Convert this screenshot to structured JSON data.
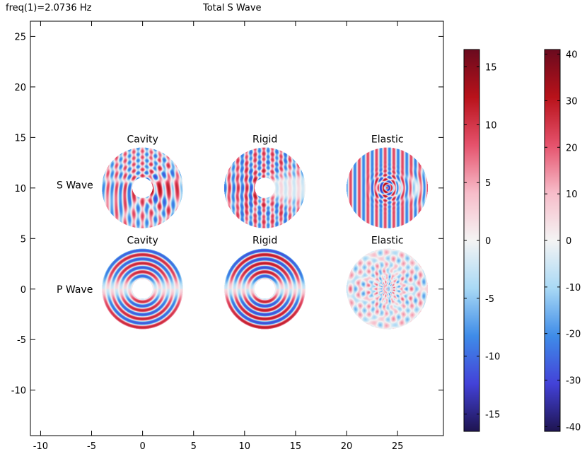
{
  "header": {
    "freq_label": "freq(1)=2.0736 Hz",
    "title": "Total S Wave"
  },
  "chart_data": {
    "type": "heatmap",
    "title": "Total S Wave",
    "xlim": [
      -11,
      29.5
    ],
    "ylim": [
      -14.5,
      26.5
    ],
    "x_ticks": [
      -10,
      -5,
      0,
      5,
      10,
      15,
      20,
      25
    ],
    "y_ticks": [
      -10,
      -5,
      0,
      5,
      10,
      15,
      20,
      25
    ],
    "row_labels": [
      {
        "text": "S Wave",
        "y": 10.3
      },
      {
        "text": "P Wave",
        "y": 0
      }
    ],
    "domains": [
      {
        "label": "Cavity",
        "type": "cavity",
        "wave": "s",
        "cx": 0,
        "cy": 10,
        "r_outer": 4,
        "r_inner": 1
      },
      {
        "label": "Rigid",
        "type": "rigid",
        "wave": "s",
        "cx": 12,
        "cy": 10,
        "r_outer": 4,
        "r_inner": 1
      },
      {
        "label": "Elastic",
        "type": "elastic",
        "wave": "s",
        "cx": 24,
        "cy": 10,
        "r_outer": 4,
        "r_inner": 0
      },
      {
        "label": "Cavity",
        "type": "cavity",
        "wave": "p",
        "cx": 0,
        "cy": 0,
        "r_outer": 4,
        "r_inner": 1
      },
      {
        "label": "Rigid",
        "type": "rigid",
        "wave": "p",
        "cx": 12,
        "cy": 0,
        "r_outer": 4,
        "r_inner": 1
      },
      {
        "label": "Elastic",
        "type": "elastic",
        "wave": "p",
        "cx": 24,
        "cy": 0,
        "r_outer": 4,
        "r_inner": 0
      }
    ],
    "colorbars": [
      {
        "name": "colorbar-s",
        "min": -16.5,
        "max": 16.5,
        "ticks": [
          15,
          10,
          5,
          0,
          -5,
          -10,
          -15
        ]
      },
      {
        "name": "colorbar-p",
        "min": -41,
        "max": 41,
        "ticks": [
          40,
          30,
          20,
          10,
          0,
          -10,
          -20,
          -30,
          -40
        ]
      }
    ],
    "colormap": [
      "#1e1450",
      "#4342d8",
      "#3f8ce8",
      "#a9d9f5",
      "#f4f4f4",
      "#f7bcc9",
      "#e5526c",
      "#b8121a",
      "#6a0a1e"
    ]
  }
}
